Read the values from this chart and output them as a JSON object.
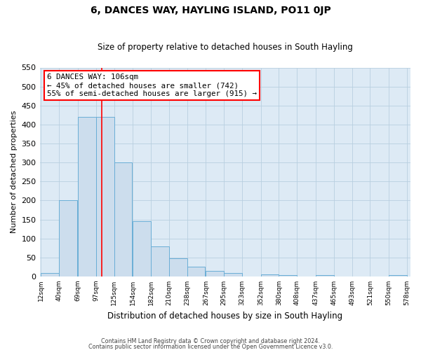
{
  "title": "6, DANCES WAY, HAYLING ISLAND, PO11 0JP",
  "subtitle": "Size of property relative to detached houses in South Hayling",
  "xlabel": "Distribution of detached houses by size in South Hayling",
  "ylabel": "Number of detached properties",
  "bar_left_edges": [
    12,
    40,
    69,
    97,
    125,
    154,
    182,
    210,
    238,
    267,
    295,
    323,
    352,
    380,
    408,
    437,
    465,
    493,
    521,
    550
  ],
  "bar_heights": [
    10,
    200,
    420,
    420,
    300,
    145,
    80,
    48,
    25,
    14,
    10,
    0,
    5,
    4,
    0,
    3,
    0,
    0,
    0,
    3
  ],
  "bin_width": 28,
  "bar_color": "#ccdded",
  "bar_edge_color": "#6aaed6",
  "tick_labels": [
    "12sqm",
    "40sqm",
    "69sqm",
    "97sqm",
    "125sqm",
    "154sqm",
    "182sqm",
    "210sqm",
    "238sqm",
    "267sqm",
    "295sqm",
    "323sqm",
    "352sqm",
    "380sqm",
    "408sqm",
    "437sqm",
    "465sqm",
    "493sqm",
    "521sqm",
    "550sqm",
    "578sqm"
  ],
  "ylim": [
    0,
    550
  ],
  "yticks": [
    0,
    50,
    100,
    150,
    200,
    250,
    300,
    350,
    400,
    450,
    500,
    550
  ],
  "red_line_x": 106,
  "annotation_line1": "6 DANCES WAY: 106sqm",
  "annotation_line2": "← 45% of detached houses are smaller (742)",
  "annotation_line3": "55% of semi-detached houses are larger (915) →",
  "grid_color": "#b8cfe0",
  "background_color": "#ddeaf5",
  "footer_line1": "Contains HM Land Registry data © Crown copyright and database right 2024.",
  "footer_line2": "Contains public sector information licensed under the Open Government Licence v3.0."
}
